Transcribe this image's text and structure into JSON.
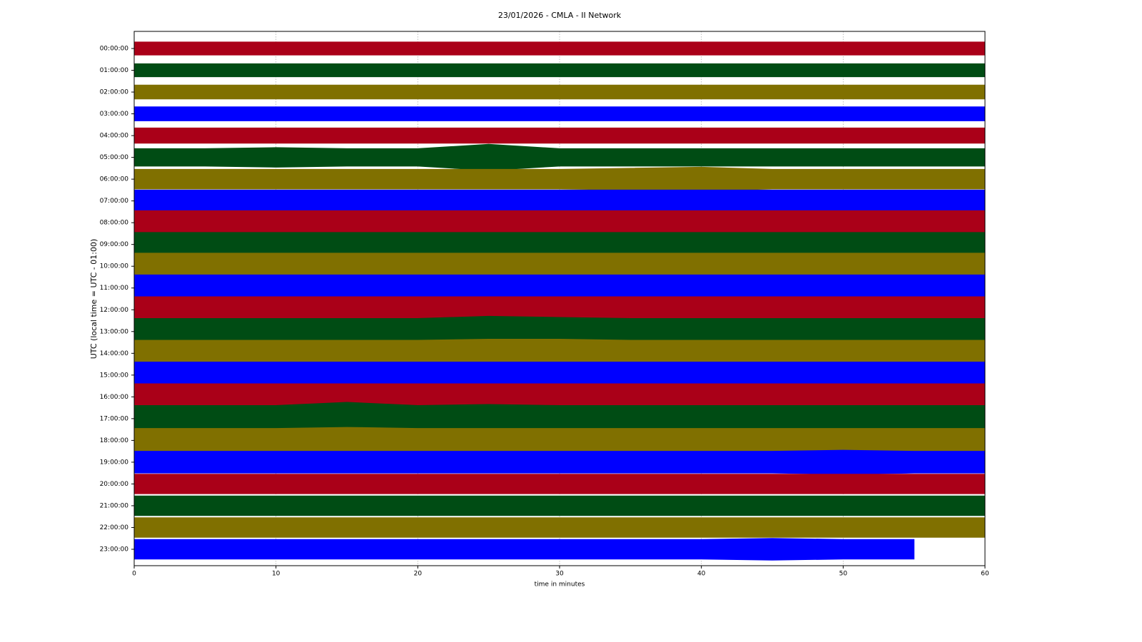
{
  "chart_data": {
    "type": "helicorder",
    "title": "23/01/2026 - CMLA - II Network",
    "xlabel": "time in minutes",
    "ylabel": "UTC (local time = UTC - 01:00)",
    "xlim": [
      0,
      60
    ],
    "xticks": [
      0,
      10,
      20,
      30,
      40,
      50,
      60
    ],
    "grid": true,
    "x": [
      0,
      5,
      10,
      15,
      20,
      25,
      30,
      35,
      40,
      45,
      50,
      55,
      60
    ],
    "series": [
      {
        "name": "00:00:00",
        "color": "#aa0018",
        "values": [
          0.3,
          0.3,
          0.3,
          0.3,
          0.3,
          0.3,
          0.3,
          0.3,
          0.3,
          0.3,
          0.3,
          0.3,
          0.3
        ]
      },
      {
        "name": "01:00:00",
        "color": "#004c14",
        "values": [
          0.3,
          0.3,
          0.3,
          0.3,
          0.3,
          0.3,
          0.3,
          0.3,
          0.3,
          0.3,
          0.3,
          0.3,
          0.3
        ]
      },
      {
        "name": "02:00:00",
        "color": "#807000",
        "values": [
          0.32,
          0.32,
          0.32,
          0.32,
          0.32,
          0.32,
          0.32,
          0.32,
          0.32,
          0.32,
          0.32,
          0.32,
          0.32
        ]
      },
      {
        "name": "03:00:00",
        "color": "#0000ff",
        "values": [
          0.32,
          0.32,
          0.32,
          0.32,
          0.32,
          0.32,
          0.32,
          0.32,
          0.32,
          0.32,
          0.32,
          0.32,
          0.32
        ]
      },
      {
        "name": "04:00:00",
        "color": "#aa0018",
        "values": [
          0.35,
          0.35,
          0.35,
          0.35,
          0.35,
          0.35,
          0.35,
          0.35,
          0.35,
          0.35,
          0.35,
          0.35,
          0.35
        ]
      },
      {
        "name": "05:00:00",
        "color": "#004c14",
        "values": [
          0.4,
          0.4,
          0.45,
          0.4,
          0.4,
          0.6,
          0.4,
          0.4,
          0.4,
          0.4,
          0.4,
          0.4,
          0.4
        ]
      },
      {
        "name": "06:00:00",
        "color": "#807000",
        "values": [
          0.45,
          0.45,
          0.45,
          0.45,
          0.45,
          0.45,
          0.45,
          0.5,
          0.55,
          0.45,
          0.45,
          0.45,
          0.45
        ]
      },
      {
        "name": "07:00:00",
        "color": "#0000ff",
        "values": [
          0.5,
          0.5,
          0.5,
          0.5,
          0.5,
          0.5,
          0.5,
          0.5,
          0.5,
          0.5,
          0.5,
          0.5,
          0.5
        ]
      },
      {
        "name": "08:00:00",
        "color": "#aa0018",
        "values": [
          0.55,
          0.55,
          0.55,
          0.55,
          0.55,
          0.55,
          0.55,
          0.55,
          0.55,
          0.55,
          0.55,
          0.55,
          0.55
        ]
      },
      {
        "name": "09:00:00",
        "color": "#004c14",
        "values": [
          0.55,
          0.55,
          0.55,
          0.55,
          0.55,
          0.55,
          0.55,
          0.55,
          0.55,
          0.55,
          0.55,
          0.55,
          0.55
        ]
      },
      {
        "name": "10:00:00",
        "color": "#807000",
        "values": [
          0.6,
          0.6,
          0.6,
          0.6,
          0.6,
          0.6,
          0.6,
          0.6,
          0.6,
          0.6,
          0.6,
          0.6,
          0.6
        ]
      },
      {
        "name": "11:00:00",
        "color": "#0000ff",
        "values": [
          0.6,
          0.6,
          0.6,
          0.6,
          0.6,
          0.6,
          0.6,
          0.6,
          0.6,
          0.6,
          0.6,
          0.6,
          0.6
        ]
      },
      {
        "name": "12:00:00",
        "color": "#aa0018",
        "values": [
          0.6,
          0.6,
          0.6,
          0.6,
          0.6,
          0.6,
          0.6,
          0.6,
          0.6,
          0.6,
          0.6,
          0.6,
          0.6
        ]
      },
      {
        "name": "13:00:00",
        "color": "#004c14",
        "values": [
          0.6,
          0.6,
          0.6,
          0.6,
          0.6,
          0.7,
          0.65,
          0.6,
          0.6,
          0.6,
          0.6,
          0.6,
          0.6
        ]
      },
      {
        "name": "14:00:00",
        "color": "#807000",
        "values": [
          0.6,
          0.6,
          0.6,
          0.6,
          0.6,
          0.65,
          0.65,
          0.6,
          0.6,
          0.6,
          0.6,
          0.6,
          0.6
        ]
      },
      {
        "name": "15:00:00",
        "color": "#0000ff",
        "values": [
          0.6,
          0.6,
          0.6,
          0.6,
          0.6,
          0.6,
          0.6,
          0.6,
          0.6,
          0.6,
          0.6,
          0.6,
          0.6
        ]
      },
      {
        "name": "16:00:00",
        "color": "#aa0018",
        "values": [
          0.6,
          0.6,
          0.6,
          0.6,
          0.6,
          0.6,
          0.6,
          0.6,
          0.6,
          0.6,
          0.6,
          0.6,
          0.6
        ]
      },
      {
        "name": "17:00:00",
        "color": "#004c14",
        "values": [
          0.6,
          0.6,
          0.6,
          0.75,
          0.6,
          0.65,
          0.6,
          0.6,
          0.6,
          0.6,
          0.6,
          0.6,
          0.6
        ]
      },
      {
        "name": "18:00:00",
        "color": "#807000",
        "values": [
          0.55,
          0.55,
          0.55,
          0.6,
          0.55,
          0.55,
          0.55,
          0.55,
          0.55,
          0.55,
          0.55,
          0.55,
          0.55
        ]
      },
      {
        "name": "19:00:00",
        "color": "#0000ff",
        "values": [
          0.5,
          0.5,
          0.5,
          0.5,
          0.5,
          0.5,
          0.5,
          0.5,
          0.5,
          0.5,
          0.55,
          0.5,
          0.5
        ]
      },
      {
        "name": "20:00:00",
        "color": "#aa0018",
        "values": [
          0.45,
          0.45,
          0.45,
          0.45,
          0.45,
          0.45,
          0.45,
          0.45,
          0.45,
          0.45,
          0.45,
          0.45,
          0.45
        ]
      },
      {
        "name": "21:00:00",
        "color": "#004c14",
        "values": [
          0.45,
          0.45,
          0.45,
          0.45,
          0.45,
          0.45,
          0.45,
          0.45,
          0.45,
          0.45,
          0.45,
          0.45,
          0.45
        ]
      },
      {
        "name": "22:00:00",
        "color": "#807000",
        "values": [
          0.45,
          0.45,
          0.45,
          0.45,
          0.45,
          0.45,
          0.45,
          0.45,
          0.45,
          0.45,
          0.45,
          0.45,
          0.45
        ]
      },
      {
        "name": "23:00:00",
        "color": "#0000ff",
        "values": [
          0.45,
          0.45,
          0.45,
          0.45,
          0.45,
          0.45,
          0.45,
          0.45,
          0.45,
          0.5,
          0.45,
          0.45,
          null
        ]
      }
    ]
  }
}
